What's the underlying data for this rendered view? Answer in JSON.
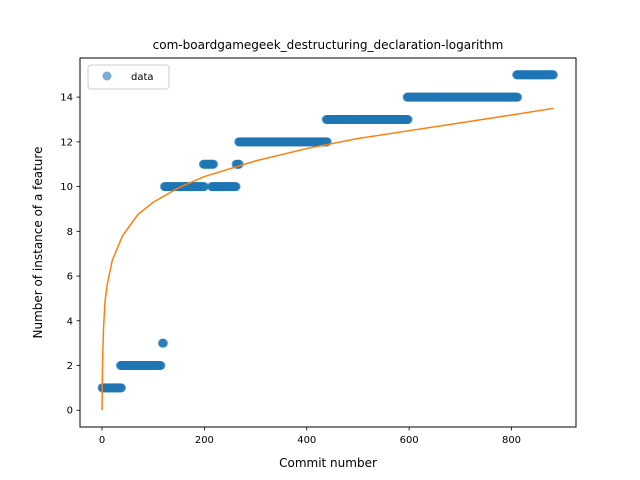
{
  "chart_data": {
    "type": "scatter",
    "title": "com-boardgamegeek_destructuring_declaration-logarithm",
    "xlabel": "Commit number",
    "ylabel": "Number of instance of a feature",
    "xlim": [
      -43,
      926
    ],
    "ylim": [
      -0.75,
      15.75
    ],
    "x_ticks": [
      0,
      200,
      400,
      600,
      800
    ],
    "y_ticks": [
      0,
      2,
      4,
      6,
      8,
      10,
      12,
      14
    ],
    "grid": false,
    "legend": {
      "position": "top-left",
      "entries": [
        "data"
      ]
    },
    "series": [
      {
        "name": "data",
        "kind": "points",
        "color": "#1f77b4",
        "segments": [
          {
            "x_start": 0,
            "x_end": 38,
            "y": 1
          },
          {
            "x_start": 36,
            "x_end": 115,
            "y": 2
          },
          {
            "x_start": 118,
            "x_end": 120,
            "y": 3
          },
          {
            "x_start": 122,
            "x_end": 200,
            "y": 10
          },
          {
            "x_start": 198,
            "x_end": 218,
            "y": 11
          },
          {
            "x_start": 214,
            "x_end": 262,
            "y": 10
          },
          {
            "x_start": 262,
            "x_end": 268,
            "y": 11
          },
          {
            "x_start": 267,
            "x_end": 440,
            "y": 12
          },
          {
            "x_start": 438,
            "x_end": 598,
            "y": 13
          },
          {
            "x_start": 596,
            "x_end": 812,
            "y": 14
          },
          {
            "x_start": 810,
            "x_end": 882,
            "y": 15
          }
        ]
      },
      {
        "kind": "curve",
        "color": "#ff7f0e",
        "model": "logarithmic fit",
        "x": [
          0,
          1,
          3,
          6,
          10,
          20,
          40,
          70,
          100,
          150,
          200,
          300,
          400,
          500,
          600,
          700,
          800,
          882
        ],
        "y": [
          0.0,
          2.1,
          3.7,
          4.9,
          5.6,
          6.7,
          7.8,
          8.75,
          9.3,
          9.95,
          10.45,
          11.15,
          11.7,
          12.15,
          12.5,
          12.85,
          13.2,
          13.5
        ]
      }
    ]
  }
}
